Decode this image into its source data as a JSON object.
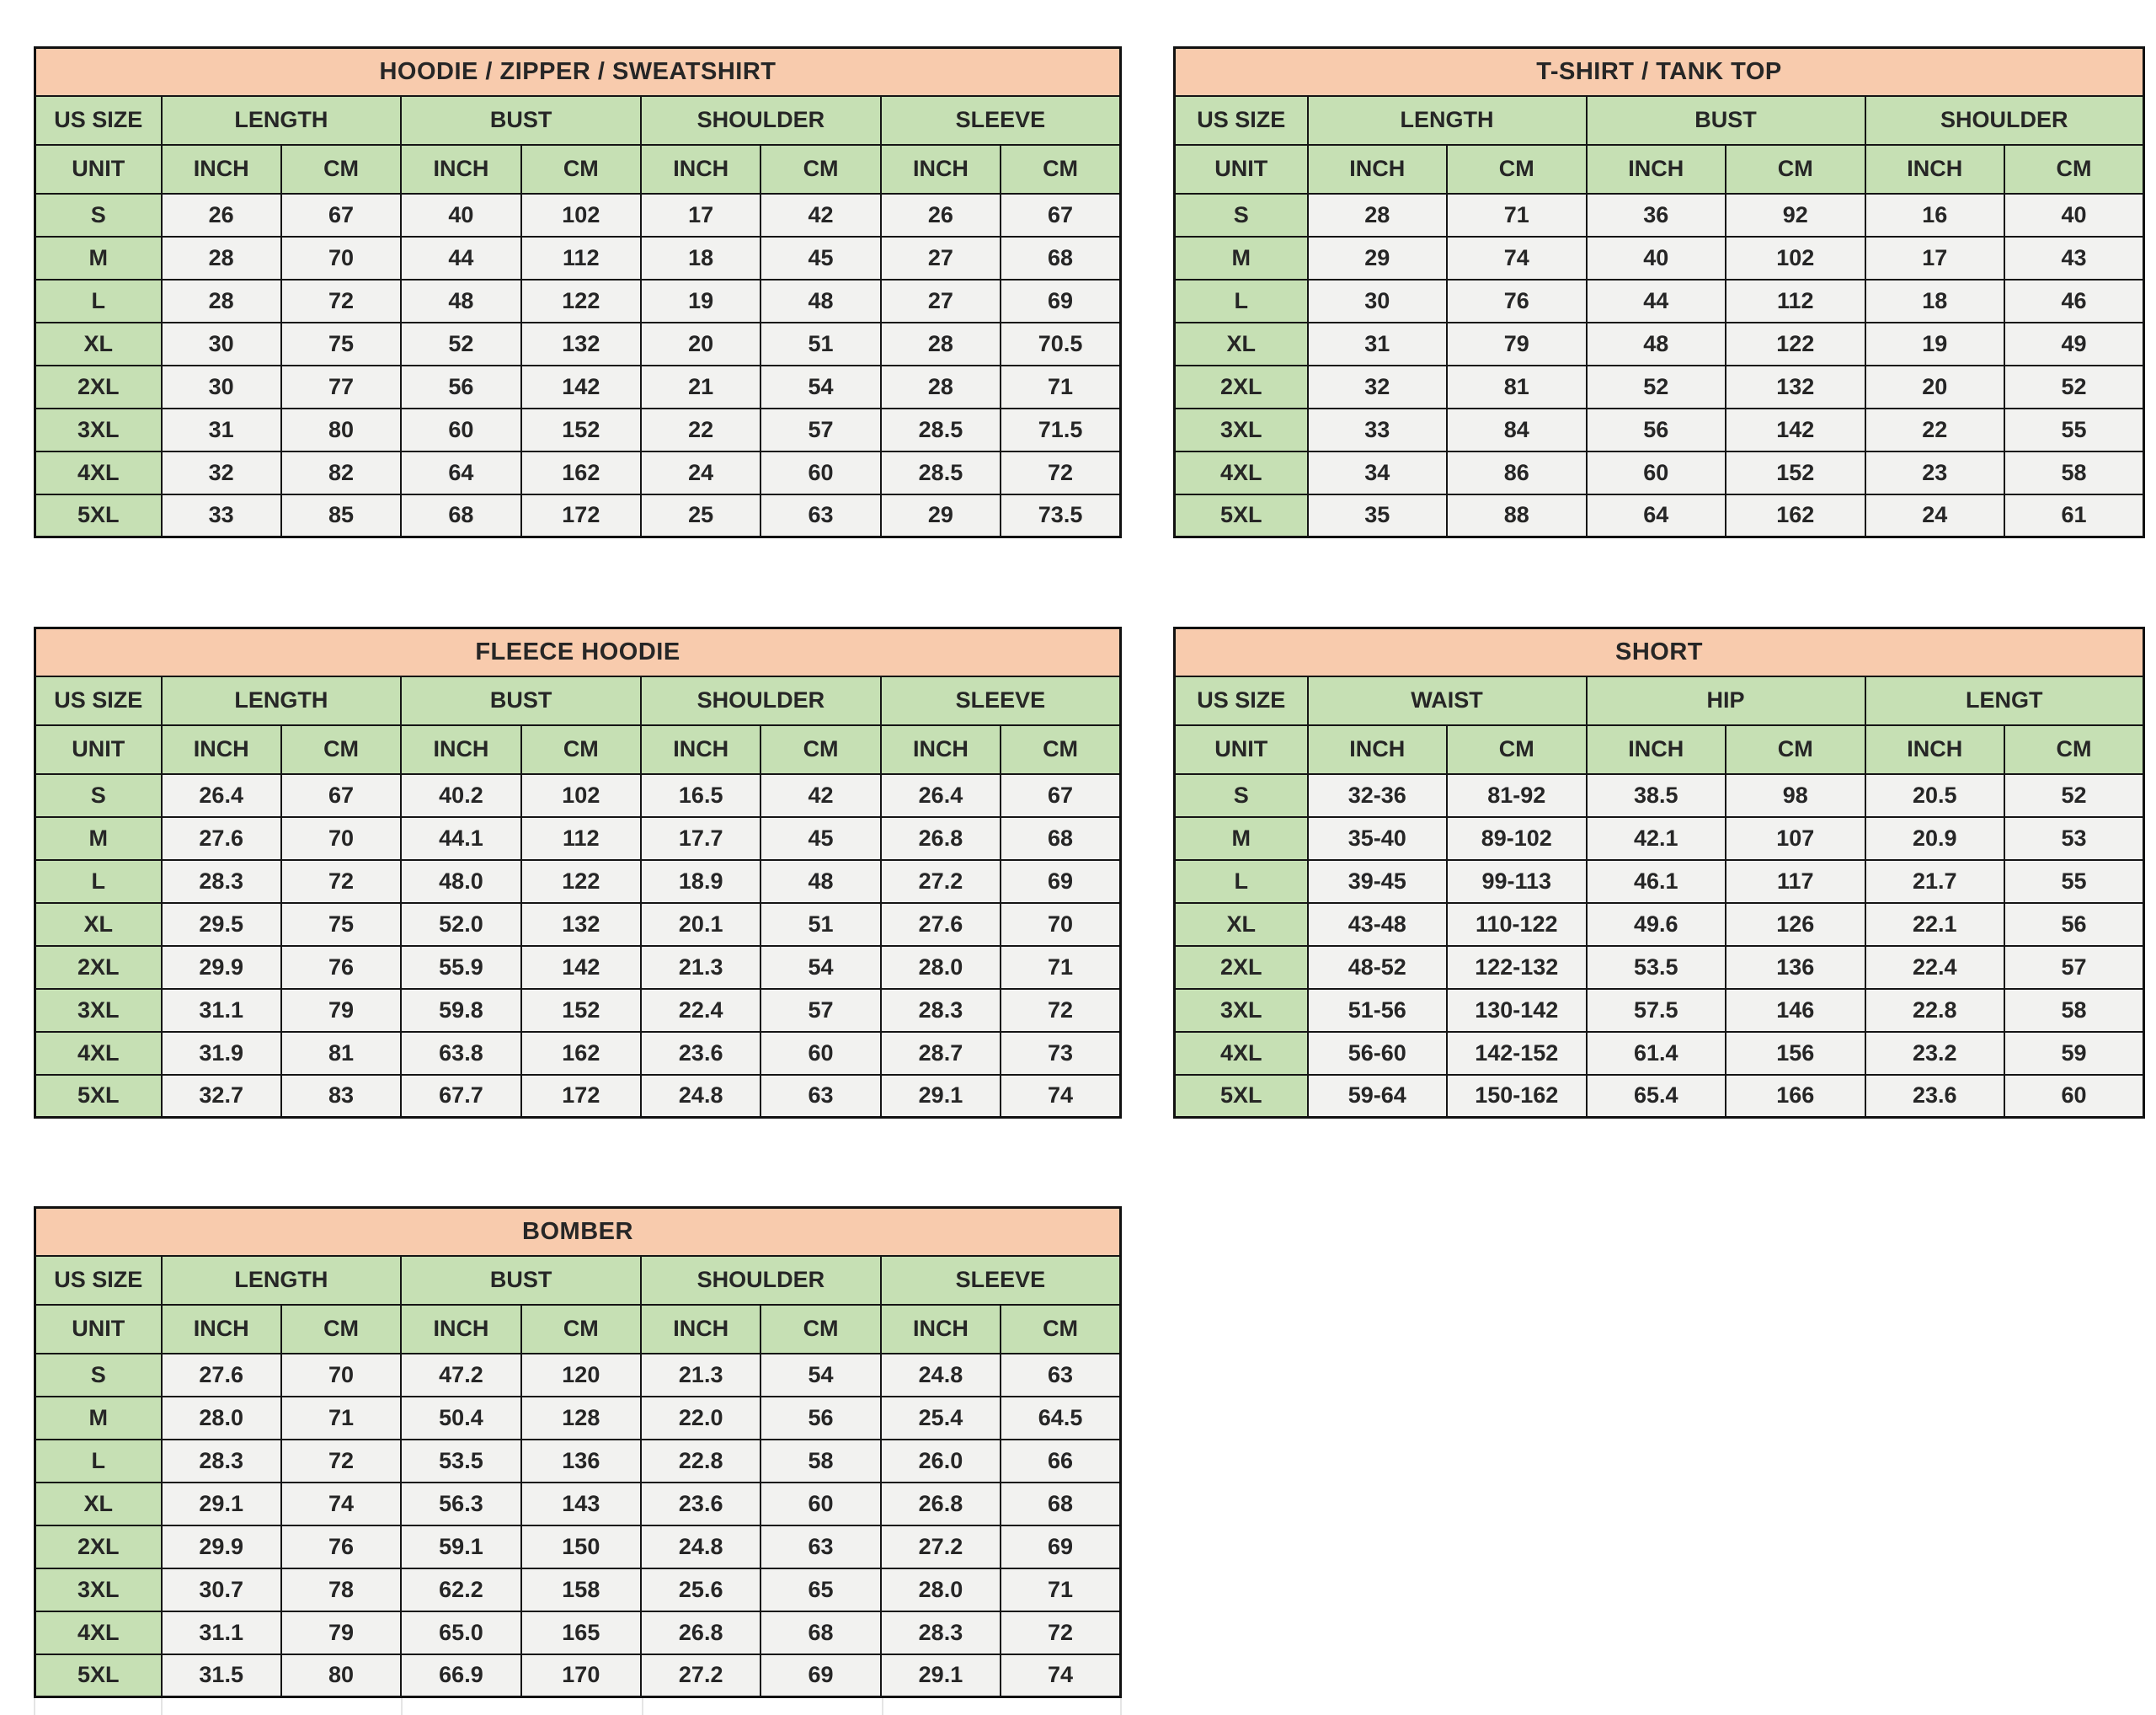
{
  "labels": {
    "us_size": "US SIZE",
    "unit": "UNIT",
    "inch": "INCH",
    "cm": "CM"
  },
  "colors": {
    "title_bg": "#F8CBAD",
    "header_bg": "#C6E0B4",
    "cell_bg": "#F2F2F0",
    "border": "#151515",
    "text": "#262626"
  },
  "tables": [
    {
      "id": "hoodie",
      "title": "HOODIE / ZIPPER / SWEATSHIRT",
      "groups": [
        "LENGTH",
        "BUST",
        "SHOULDER",
        "SLEEVE"
      ],
      "rows": [
        {
          "size": "S",
          "values": [
            "26",
            "67",
            "40",
            "102",
            "17",
            "42",
            "26",
            "67"
          ]
        },
        {
          "size": "M",
          "values": [
            "28",
            "70",
            "44",
            "112",
            "18",
            "45",
            "27",
            "68"
          ]
        },
        {
          "size": "L",
          "values": [
            "28",
            "72",
            "48",
            "122",
            "19",
            "48",
            "27",
            "69"
          ]
        },
        {
          "size": "XL",
          "values": [
            "30",
            "75",
            "52",
            "132",
            "20",
            "51",
            "28",
            "70.5"
          ]
        },
        {
          "size": "2XL",
          "values": [
            "30",
            "77",
            "56",
            "142",
            "21",
            "54",
            "28",
            "71"
          ]
        },
        {
          "size": "3XL",
          "values": [
            "31",
            "80",
            "60",
            "152",
            "22",
            "57",
            "28.5",
            "71.5"
          ]
        },
        {
          "size": "4XL",
          "values": [
            "32",
            "82",
            "64",
            "162",
            "24",
            "60",
            "28.5",
            "72"
          ]
        },
        {
          "size": "5XL",
          "values": [
            "33",
            "85",
            "68",
            "172",
            "25",
            "63",
            "29",
            "73.5"
          ]
        }
      ]
    },
    {
      "id": "tshirt",
      "title": "T-SHIRT / TANK TOP",
      "groups": [
        "LENGTH",
        "BUST",
        "SHOULDER"
      ],
      "rows": [
        {
          "size": "S",
          "values": [
            "28",
            "71",
            "36",
            "92",
            "16",
            "40"
          ]
        },
        {
          "size": "M",
          "values": [
            "29",
            "74",
            "40",
            "102",
            "17",
            "43"
          ]
        },
        {
          "size": "L",
          "values": [
            "30",
            "76",
            "44",
            "112",
            "18",
            "46"
          ]
        },
        {
          "size": "XL",
          "values": [
            "31",
            "79",
            "48",
            "122",
            "19",
            "49"
          ]
        },
        {
          "size": "2XL",
          "values": [
            "32",
            "81",
            "52",
            "132",
            "20",
            "52"
          ]
        },
        {
          "size": "3XL",
          "values": [
            "33",
            "84",
            "56",
            "142",
            "22",
            "55"
          ]
        },
        {
          "size": "4XL",
          "values": [
            "34",
            "86",
            "60",
            "152",
            "23",
            "58"
          ]
        },
        {
          "size": "5XL",
          "values": [
            "35",
            "88",
            "64",
            "162",
            "24",
            "61"
          ]
        }
      ]
    },
    {
      "id": "fleece",
      "title": "FLEECE HOODIE",
      "groups": [
        "LENGTH",
        "BUST",
        "SHOULDER",
        "SLEEVE"
      ],
      "rows": [
        {
          "size": "S",
          "values": [
            "26.4",
            "67",
            "40.2",
            "102",
            "16.5",
            "42",
            "26.4",
            "67"
          ]
        },
        {
          "size": "M",
          "values": [
            "27.6",
            "70",
            "44.1",
            "112",
            "17.7",
            "45",
            "26.8",
            "68"
          ]
        },
        {
          "size": "L",
          "values": [
            "28.3",
            "72",
            "48.0",
            "122",
            "18.9",
            "48",
            "27.2",
            "69"
          ]
        },
        {
          "size": "XL",
          "values": [
            "29.5",
            "75",
            "52.0",
            "132",
            "20.1",
            "51",
            "27.6",
            "70"
          ]
        },
        {
          "size": "2XL",
          "values": [
            "29.9",
            "76",
            "55.9",
            "142",
            "21.3",
            "54",
            "28.0",
            "71"
          ]
        },
        {
          "size": "3XL",
          "values": [
            "31.1",
            "79",
            "59.8",
            "152",
            "22.4",
            "57",
            "28.3",
            "72"
          ]
        },
        {
          "size": "4XL",
          "values": [
            "31.9",
            "81",
            "63.8",
            "162",
            "23.6",
            "60",
            "28.7",
            "73"
          ]
        },
        {
          "size": "5XL",
          "values": [
            "32.7",
            "83",
            "67.7",
            "172",
            "24.8",
            "63",
            "29.1",
            "74"
          ]
        }
      ]
    },
    {
      "id": "short",
      "title": "SHORT",
      "groups": [
        "WAIST",
        "HIP",
        "LENGT"
      ],
      "rows": [
        {
          "size": "S",
          "values": [
            "32-36",
            "81-92",
            "38.5",
            "98",
            "20.5",
            "52"
          ]
        },
        {
          "size": "M",
          "values": [
            "35-40",
            "89-102",
            "42.1",
            "107",
            "20.9",
            "53"
          ]
        },
        {
          "size": "L",
          "values": [
            "39-45",
            "99-113",
            "46.1",
            "117",
            "21.7",
            "55"
          ]
        },
        {
          "size": "XL",
          "values": [
            "43-48",
            "110-122",
            "49.6",
            "126",
            "22.1",
            "56"
          ]
        },
        {
          "size": "2XL",
          "values": [
            "48-52",
            "122-132",
            "53.5",
            "136",
            "22.4",
            "57"
          ]
        },
        {
          "size": "3XL",
          "values": [
            "51-56",
            "130-142",
            "57.5",
            "146",
            "22.8",
            "58"
          ]
        },
        {
          "size": "4XL",
          "values": [
            "56-60",
            "142-152",
            "61.4",
            "156",
            "23.2",
            "59"
          ]
        },
        {
          "size": "5XL",
          "values": [
            "59-64",
            "150-162",
            "65.4",
            "166",
            "23.6",
            "60"
          ]
        }
      ]
    },
    {
      "id": "bomber",
      "title": "BOMBER",
      "groups": [
        "LENGTH",
        "BUST",
        "SHOULDER",
        "SLEEVE"
      ],
      "rows": [
        {
          "size": "S",
          "values": [
            "27.6",
            "70",
            "47.2",
            "120",
            "21.3",
            "54",
            "24.8",
            "63"
          ]
        },
        {
          "size": "M",
          "values": [
            "28.0",
            "71",
            "50.4",
            "128",
            "22.0",
            "56",
            "25.4",
            "64.5"
          ]
        },
        {
          "size": "L",
          "values": [
            "28.3",
            "72",
            "53.5",
            "136",
            "22.8",
            "58",
            "26.0",
            "66"
          ]
        },
        {
          "size": "XL",
          "values": [
            "29.1",
            "74",
            "56.3",
            "143",
            "23.6",
            "60",
            "26.8",
            "68"
          ]
        },
        {
          "size": "2XL",
          "values": [
            "29.9",
            "76",
            "59.1",
            "150",
            "24.8",
            "63",
            "27.2",
            "69"
          ]
        },
        {
          "size": "3XL",
          "values": [
            "30.7",
            "78",
            "62.2",
            "158",
            "25.6",
            "65",
            "28.0",
            "71"
          ]
        },
        {
          "size": "4XL",
          "values": [
            "31.1",
            "79",
            "65.0",
            "165",
            "26.8",
            "68",
            "28.3",
            "72"
          ]
        },
        {
          "size": "5XL",
          "values": [
            "31.5",
            "80",
            "66.9",
            "170",
            "27.2",
            "69",
            "29.1",
            "74"
          ]
        }
      ]
    }
  ]
}
